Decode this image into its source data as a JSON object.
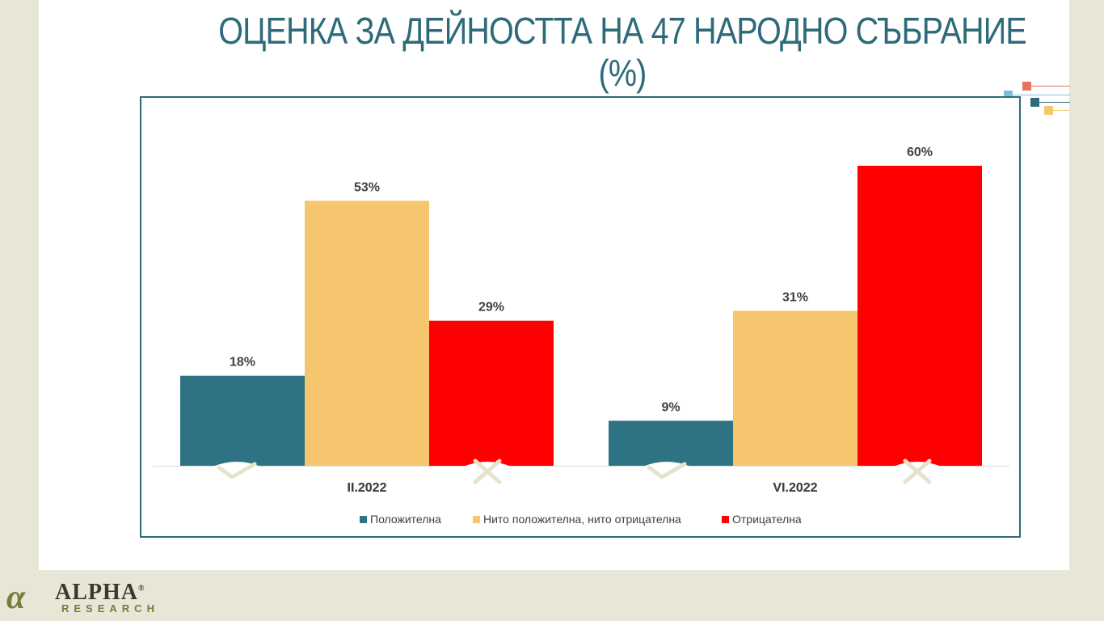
{
  "slide": {
    "title_line1": "ОЦЕНКА ЗА ДЕЙНОСТТА НА 47 НАРОДНО СЪБРАНИЕ",
    "title_line2": "(%)"
  },
  "logo": {
    "mark": "α",
    "word": "ALPHA",
    "registered": "®",
    "sub": "RESEARCH"
  },
  "chart_data": {
    "type": "bar",
    "categories": [
      "II.2022",
      "VI.2022"
    ],
    "series": [
      {
        "name": "Положителна",
        "values": [
          18,
          9
        ],
        "color": "#2e7384"
      },
      {
        "name": "Нито положителна, нито отрицателна",
        "values": [
          53,
          31
        ],
        "color": "#f5c66e"
      },
      {
        "name": "Отрицателна",
        "values": [
          29,
          60
        ],
        "color": "#ff0000"
      }
    ],
    "value_suffix": "%",
    "ylim": [
      0,
      60
    ],
    "legend_position": "bottom",
    "grid": false,
    "markers": [
      "check-icon",
      "cross-icon",
      "check-icon",
      "cross-icon"
    ]
  },
  "colors": {
    "accent": "#2e6b7a",
    "deco": [
      "#e8735a",
      "#7fc0d8",
      "#2e6b7a",
      "#f5c66e"
    ]
  }
}
